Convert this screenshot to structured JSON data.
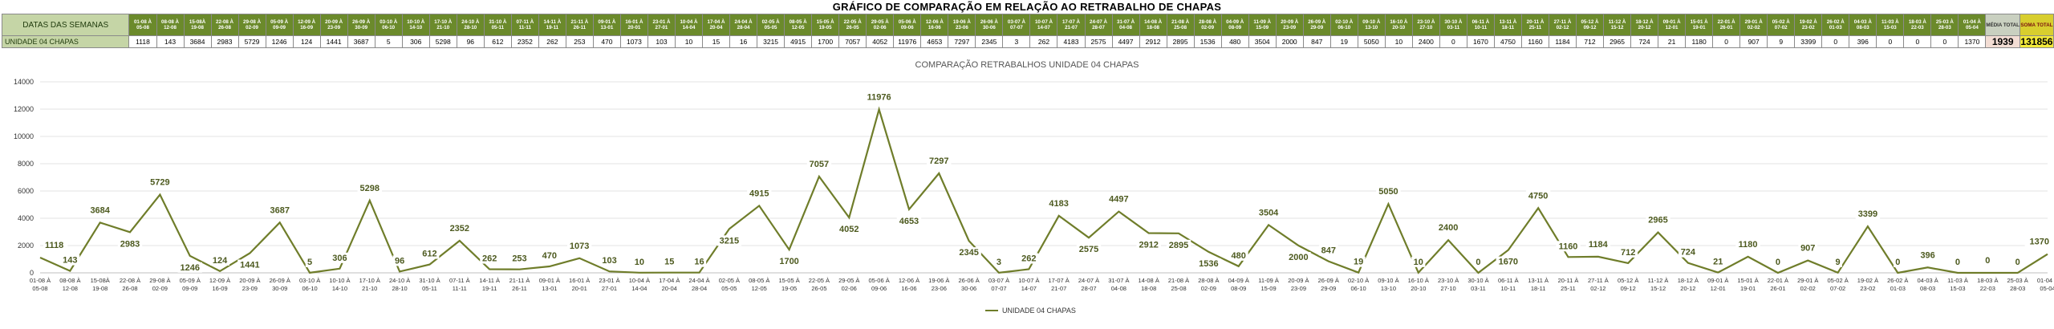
{
  "page_title": "GRÁFICO DE COMPARAÇÃO EM RELAÇÃO AO RETRABALHO DE CHAPAS",
  "table": {
    "header_label": "DATAS DAS SEMANAS",
    "row_label": "UNIDADE 04 CHAPAS",
    "avg_header": "MÉDIA TOTAL",
    "sum_header": "SOMA TOTAL",
    "avg_value": "1939",
    "sum_value": "131856"
  },
  "chart_data": {
    "type": "line",
    "title": "COMPARAÇÃO RETRABALHOS UNIDADE 04 CHAPAS",
    "xlabel": "",
    "ylabel": "",
    "ylim": [
      0,
      14000
    ],
    "yticks": [
      0,
      2000,
      4000,
      6000,
      8000,
      10000,
      12000,
      14000
    ],
    "grid": true,
    "legend": "bottom",
    "line_color": "#6f7d2a",
    "categories": [
      [
        "01-08 À",
        "05-08"
      ],
      [
        "08-08 À",
        "12-08"
      ],
      [
        "15-08À",
        "19-08"
      ],
      [
        "22-08 À",
        "26-08"
      ],
      [
        "29-08 À",
        "02-09"
      ],
      [
        "05-09 À",
        "09-09"
      ],
      [
        "12-09 À",
        "16-09"
      ],
      [
        "20-09 À",
        "23-09"
      ],
      [
        "26-09 À",
        "30-09"
      ],
      [
        "03-10 À",
        "06-10"
      ],
      [
        "10-10 À",
        "14-10"
      ],
      [
        "17-10 À",
        "21-10"
      ],
      [
        "24-10 À",
        "28-10"
      ],
      [
        "31-10 À",
        "05-11"
      ],
      [
        "07-11 À",
        "11-11"
      ],
      [
        "14-11 À",
        "19-11"
      ],
      [
        "21-11 À",
        "26-11"
      ],
      [
        "09-01 À",
        "13-01"
      ],
      [
        "16-01 À",
        "20-01"
      ],
      [
        "23-01 À",
        "27-01"
      ],
      [
        "10-04 À",
        "14-04"
      ],
      [
        "17-04 À",
        "20-04"
      ],
      [
        "24-04 À",
        "28-04"
      ],
      [
        "02-05 À",
        "05-05"
      ],
      [
        "08-05 À",
        "12-05"
      ],
      [
        "15-05 À",
        "19-05"
      ],
      [
        "22-05 À",
        "26-05"
      ],
      [
        "29-05 À",
        "02-06"
      ],
      [
        "05-06 À",
        "09-06"
      ],
      [
        "12-06 À",
        "16-06"
      ],
      [
        "19-06 À",
        "23-06"
      ],
      [
        "26-06 À",
        "30-06"
      ],
      [
        "03-07 À",
        "07-07"
      ],
      [
        "10-07 À",
        "14-07"
      ],
      [
        "17-07 À",
        "21-07"
      ],
      [
        "24-07 À",
        "28-07"
      ],
      [
        "31-07 À",
        "04-08"
      ],
      [
        "14-08 À",
        "18-08"
      ],
      [
        "21-08 À",
        "25-08"
      ],
      [
        "28-08 À",
        "02-09"
      ],
      [
        "04-09 À",
        "08-09"
      ],
      [
        "11-09 À",
        "15-09"
      ],
      [
        "20-09 À",
        "23-09"
      ],
      [
        "26-09 À",
        "29-09"
      ],
      [
        "02-10 À",
        "06-10"
      ],
      [
        "09-10 À",
        "13-10"
      ],
      [
        "16-10 À",
        "20-10"
      ],
      [
        "23-10 À",
        "27-10"
      ],
      [
        "30-10 À",
        "03-11"
      ],
      [
        "06-11 À",
        "10-11"
      ],
      [
        "13-11 À",
        "18-11"
      ],
      [
        "20-11 À",
        "25-11"
      ],
      [
        "27-11 À",
        "02-12"
      ],
      [
        "05-12 À",
        "09-12"
      ],
      [
        "11-12 À",
        "15-12"
      ],
      [
        "18-12 À",
        "20-12"
      ],
      [
        "09-01 À",
        "12-01"
      ],
      [
        "15-01 À",
        "19-01"
      ],
      [
        "22-01 À",
        "26-01"
      ],
      [
        "29-01 À",
        "02-02"
      ],
      [
        "05-02 À",
        "07-02"
      ],
      [
        "19-02 À",
        "23-02"
      ],
      [
        "26-02 À",
        "01-03"
      ],
      [
        "04-03 À",
        "08-03"
      ],
      [
        "11-03 À",
        "15-03"
      ],
      [
        "18-03 À",
        "22-03"
      ],
      [
        "25-03 À",
        "28-03"
      ],
      [
        "01-04 À",
        "05-04"
      ]
    ],
    "series": [
      {
        "name": "UNIDADE 04 CHAPAS",
        "values": [
          1118,
          143,
          3684,
          2983,
          5729,
          1246,
          124,
          1441,
          3687,
          5,
          306,
          5298,
          96,
          612,
          2352,
          262,
          253,
          470,
          1073,
          103,
          10,
          15,
          16,
          3215,
          4915,
          1700,
          7057,
          4052,
          11976,
          4653,
          7297,
          2345,
          3,
          262,
          4183,
          2575,
          4497,
          2912,
          2895,
          1536,
          480,
          3504,
          2000,
          847,
          19,
          5050,
          10,
          2400,
          0,
          1670,
          4750,
          1160,
          1184,
          712,
          2965,
          724,
          21,
          1180,
          0,
          907,
          9,
          3399,
          0,
          396,
          0,
          0,
          0,
          1370
        ]
      }
    ]
  }
}
